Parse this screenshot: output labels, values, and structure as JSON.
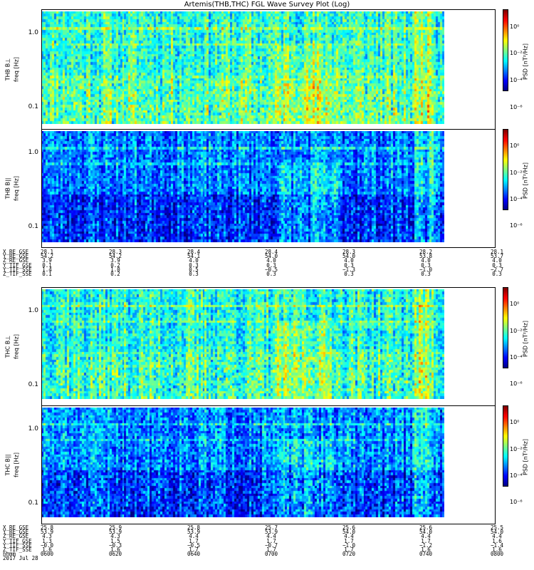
{
  "title": "Artemis(THB,THC) FGL Wave Survey Plot (Log)",
  "colors": {
    "accent": "#000000"
  },
  "colorbar_ticks": [
    "10⁰",
    "10⁻²",
    "10⁻⁴",
    "10⁻⁶"
  ],
  "panels": [
    {
      "id": "thb-bperp",
      "probe_label": "THB B⊥",
      "ylabel": "freq [Hz]",
      "cbar_label": "PSD [nT²/Hz]",
      "yticks": [
        "1.0",
        "0.1"
      ]
    },
    {
      "id": "thb-bpar",
      "probe_label": "THB B||",
      "ylabel": "freq [Hz]",
      "cbar_label": "PSD [nT²/Hz]",
      "yticks": [
        "1.0",
        "0.1"
      ]
    },
    {
      "id": "thc-bperp",
      "probe_label": "THC B⊥",
      "ylabel": "freq [Hz]",
      "cbar_label": "PSD [nT²/Hz]",
      "yticks": [
        "1.0",
        "0.1"
      ]
    },
    {
      "id": "thc-bpar",
      "probe_label": "THC B||",
      "ylabel": "freq [Hz]",
      "cbar_label": "PSD [nT²/Hz]",
      "yticks": [
        "1.0",
        "0.1"
      ]
    }
  ],
  "eph_thb": {
    "labels": [
      "X_RE_GSE",
      "Y_RE_GSE",
      "Z_RE_GSE",
      "Y_TIF_GSE",
      "Y_TIF_SSE",
      "Z_TIF_SSE"
    ],
    "columns": [
      [
        "28.1",
        "54.2",
        "3.9",
        "0.1",
        "1.4",
        "0.1"
      ],
      [
        "28.3",
        "54.2",
        "3.9",
        "0.2",
        "1.0",
        "0.2"
      ],
      [
        "28.4",
        "54.1",
        "4.0",
        "0.3",
        "0.5",
        "0.3"
      ],
      [
        "28.4",
        "54.0",
        "4.0",
        "0.3",
        "−0.5",
        "0.3"
      ],
      [
        "28.3",
        "54.0",
        "4.0",
        "0.3",
        "−1.3",
        "0.3"
      ],
      [
        "28.2",
        "53.8",
        "4.0",
        "0.3",
        "−1.0",
        "0.3"
      ],
      [
        "28.1",
        "53.7",
        "4.0",
        "0.3",
        "−2.7",
        "0.3"
      ]
    ]
  },
  "eph_thc": {
    "labels": [
      "X_RE_GSE",
      "Y_RE_GSE",
      "Z_RE_GSE",
      "Y_TIF_GSE",
      "Y_TIF_SSE",
      "Z_TIF_SSE",
      "hhmm",
      "2017 Jul 28"
    ],
    "columns": [
      [
        "25.8",
        "53.9",
        "4.3",
        "1.3",
        "−0.0",
        "1.6",
        "0600"
      ],
      [
        "25.9",
        "53.9",
        "4.3",
        "1.5",
        "−0.3",
        "1.6",
        "0620"
      ],
      [
        "25.8",
        "53.9",
        "4.4",
        "1.7",
        "−0.5",
        "1.7",
        "0640"
      ],
      [
        "25.7",
        "53.9",
        "4.4",
        "1.7",
        "−0.7",
        "1.7",
        "0700"
      ],
      [
        "25.6",
        "54.0",
        "4.4",
        "1.7",
        "−1.0",
        "1.7",
        "0720"
      ],
      [
        "25.6",
        "54.0",
        "4.4",
        "1.7",
        "−1.2",
        "1.6",
        "0740"
      ],
      [
        "25.5",
        "54.0",
        "4.4",
        "1.6",
        "−1.4",
        "1.6",
        "0800"
      ]
    ]
  },
  "chart_data": [
    {
      "type": "heatmap",
      "title": "Artemis(THB,THC) FGL Wave Survey Plot (Log)",
      "panel": "THB B⊥",
      "ylabel": "freq [Hz]",
      "yscale": "log",
      "x_range": [
        "0600",
        "0800"
      ],
      "colorbar_label": "PSD [nT²/Hz]",
      "colorbar_scale": "log",
      "colorbar_range": [
        "1e-6",
        "1e0"
      ],
      "grid": false
    },
    {
      "type": "heatmap",
      "panel": "THB B||",
      "ylabel": "freq [Hz]",
      "yscale": "log",
      "x_range": [
        "0600",
        "0800"
      ],
      "colorbar_label": "PSD [nT²/Hz]",
      "colorbar_scale": "log",
      "colorbar_range": [
        "1e-6",
        "1e0"
      ],
      "grid": false
    },
    {
      "type": "heatmap",
      "panel": "THC B⊥",
      "ylabel": "freq [Hz]",
      "yscale": "log",
      "x_range": [
        "0600",
        "0800"
      ],
      "colorbar_label": "PSD [nT²/Hz]",
      "colorbar_scale": "log",
      "colorbar_range": [
        "1e-6",
        "1e0"
      ],
      "grid": false
    },
    {
      "type": "heatmap",
      "panel": "THC B||",
      "ylabel": "freq [Hz]",
      "yscale": "log",
      "x_range": [
        "0600",
        "0800"
      ],
      "colorbar_label": "PSD [nT²/Hz]",
      "colorbar_scale": "log",
      "colorbar_range": [
        "1e-6",
        "1e0"
      ],
      "grid": false
    }
  ]
}
